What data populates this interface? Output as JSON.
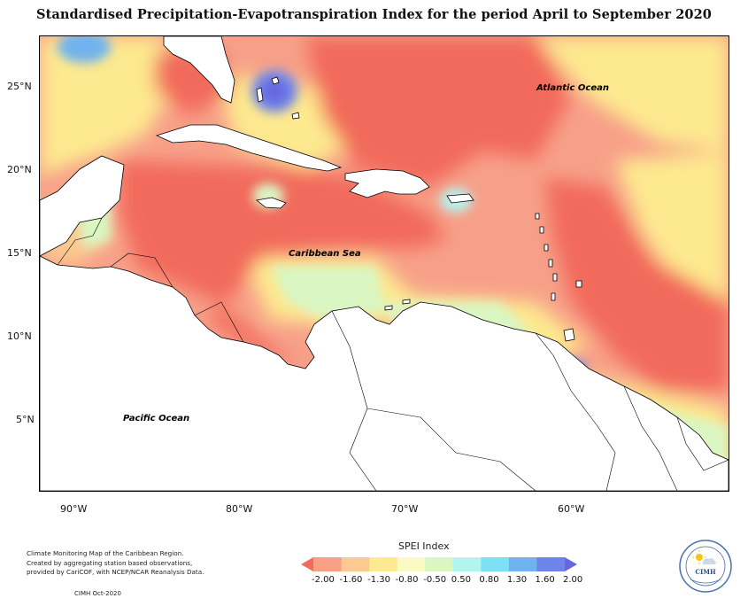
{
  "title": "Standardised Precipitation-Evapotranspiration Index for the period April to September 2020",
  "map": {
    "lat_labels": [
      "25°N",
      "20°N",
      "15°N",
      "10°N",
      "5°N"
    ],
    "lon_labels": [
      "90°W",
      "80°W",
      "70°W",
      "60°W"
    ],
    "ocean_labels": {
      "atlantic": "Atlantic Ocean",
      "caribbean": "Caribbean Sea",
      "pacific": "Pacific Ocean"
    }
  },
  "legend": {
    "title": "SPEI Index",
    "values": [
      "-2.00",
      "-1.60",
      "-1.30",
      "-0.80",
      "-0.50",
      "0.50",
      "0.80",
      "1.30",
      "1.60",
      "2.00"
    ],
    "colors": [
      "#f26b5b",
      "#f7a086",
      "#fbc991",
      "#fde98f",
      "#fbf9c4",
      "#d9f6c3",
      "#b4f4ef",
      "#7ee0f5",
      "#6fb2ee",
      "#6f84ea",
      "#6666e0"
    ]
  },
  "footer": {
    "note_lines": [
      "Climate Monitoring Map of the Caribbean Region.",
      "Created by aggregating station based observations,",
      "provided by CariCOF, with NCEP/NCAR Reanalysis Data."
    ],
    "date": "CIMH Oct-2020"
  },
  "logo": {
    "text": "CIMH",
    "icon": "sun-cloud-icon"
  }
}
